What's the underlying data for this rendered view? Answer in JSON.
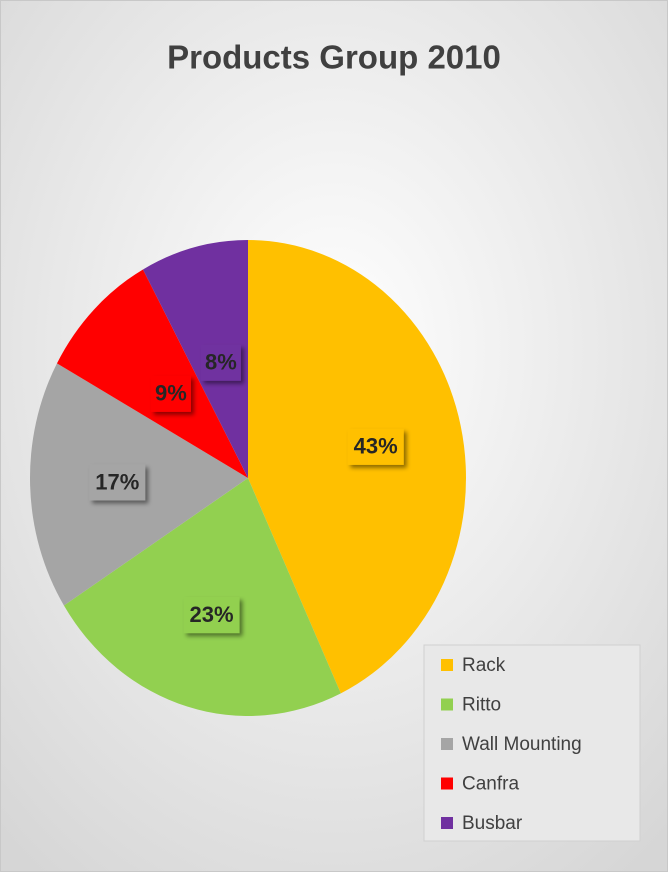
{
  "chart_data": {
    "type": "pie",
    "title": "Products Group 2010",
    "categories": [
      "Rack",
      "Ritto",
      "Wall Mounting",
      "Canfra",
      "Busbar"
    ],
    "values": [
      43,
      23,
      17,
      9,
      8
    ],
    "value_labels": [
      "43%",
      "23%",
      "17%",
      "9%",
      "8%"
    ],
    "colors": [
      "#FFC000",
      "#92D050",
      "#A5A5A5",
      "#FF0000",
      "#7030A0"
    ],
    "legend": "bottom-right"
  }
}
